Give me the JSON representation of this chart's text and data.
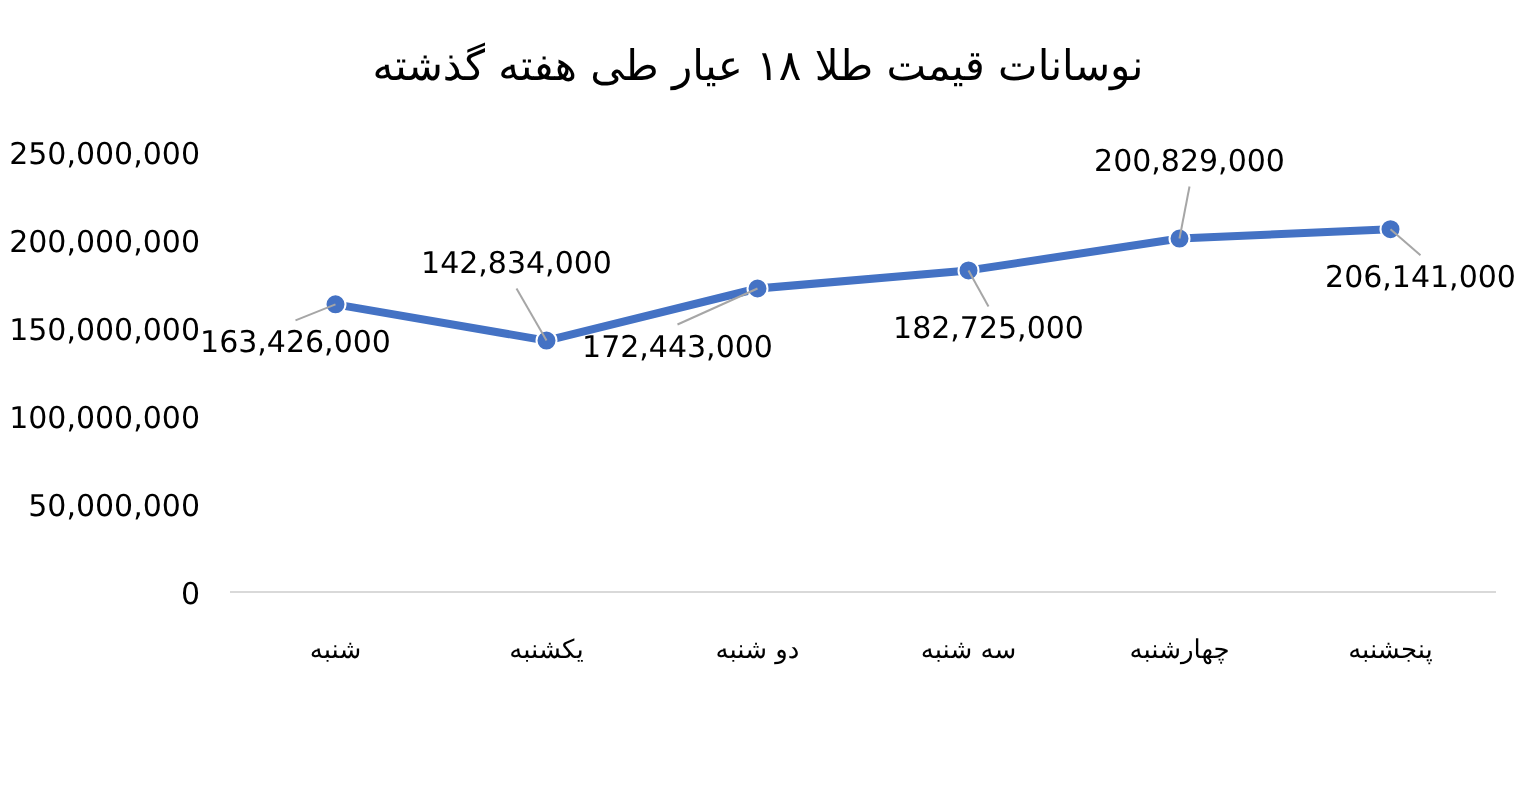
{
  "chart_data": {
    "type": "line",
    "title": "نوسانات قیمت طلا ۱۸ عیار طی هفته گذشته",
    "categories": [
      "شنبه",
      "یکشنبه",
      "دو شنبه",
      "سه شنبه",
      "چهارشنبه",
      "پنجشنبه"
    ],
    "series": [
      {
        "color": "#4472c4",
        "values": [
          163426000,
          142834000,
          172443000,
          182725000,
          200829000,
          206141000
        ],
        "value_labels": [
          "163,426,000",
          "142,834,000",
          "172,443,000",
          "182,725,000",
          "200,829,000",
          "206,141,000"
        ]
      }
    ],
    "ylim": [
      0,
      250000000
    ],
    "yticks": [
      {
        "value": 0,
        "label": "0"
      },
      {
        "value": 50000000,
        "label": "50,000,000"
      },
      {
        "value": 100000000,
        "label": "100,000,000"
      },
      {
        "value": 150000000,
        "label": "150,000,000"
      },
      {
        "value": 200000000,
        "label": "200,000,000"
      },
      {
        "value": 250000000,
        "label": "250,000,000"
      }
    ],
    "marker": "circle",
    "line_style": "solid"
  }
}
